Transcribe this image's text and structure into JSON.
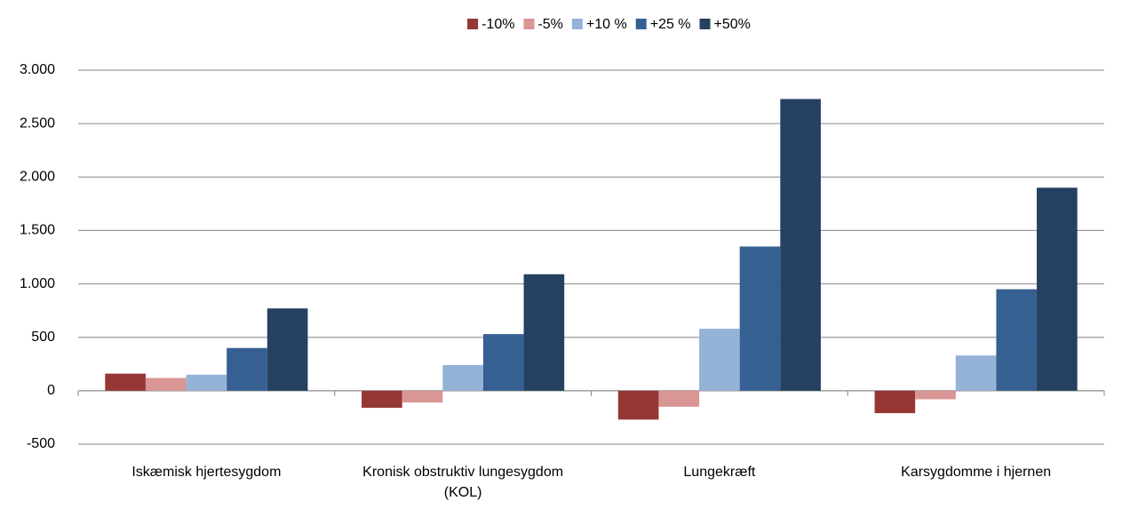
{
  "chart_data": {
    "type": "bar",
    "categories": [
      "Iskæmisk hjertesygdom",
      "Kronisk obstruktiv lungesygdom (KOL)",
      "Lungekræft",
      "Karsygdomme i hjernen"
    ],
    "series": [
      {
        "name": "-10%",
        "color": "#953735",
        "values": [
          160,
          -160,
          -270,
          -210
        ]
      },
      {
        "name": "-5%",
        "color": "#d99694",
        "values": [
          120,
          -110,
          -150,
          -80
        ]
      },
      {
        "name": "+10 %",
        "color": "#95b3d7",
        "values": [
          150,
          240,
          580,
          330
        ]
      },
      {
        "name": "+25 %",
        "color": "#376092",
        "values": [
          400,
          530,
          1350,
          950
        ]
      },
      {
        "name": "+50%",
        "color": "#254061",
        "values": [
          770,
          1090,
          2730,
          1900
        ]
      }
    ],
    "ylim": [
      -500,
      3000
    ],
    "yticks": [
      -500,
      0,
      500,
      {
        "value": 1000,
        "label": "1.000"
      },
      {
        "value": 1500,
        "label": "1.500"
      },
      {
        "value": 2000,
        "label": "2.000"
      },
      {
        "value": 2500,
        "label": "2.500"
      },
      {
        "value": 3000,
        "label": "3.000"
      }
    ],
    "grid": true,
    "legend": "top"
  }
}
